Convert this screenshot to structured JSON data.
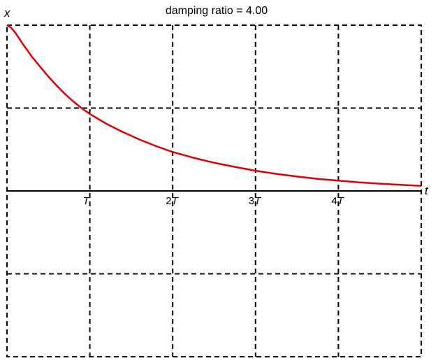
{
  "chart_data": {
    "type": "line",
    "title": "damping ratio = 4.00",
    "xlabel": "t",
    "ylabel": "x",
    "x_tick_labels": [
      {
        "value": 1,
        "coef": "",
        "sym": "T"
      },
      {
        "value": 2,
        "coef": "2",
        "sym": "T"
      },
      {
        "value": 3,
        "coef": "3",
        "sym": "T"
      },
      {
        "value": 4,
        "coef": "4",
        "sym": "T"
      }
    ],
    "x_unit": "T",
    "xlim": [
      0,
      5
    ],
    "ylim": [
      -1,
      1
    ],
    "grid": true,
    "grid_style": "dashed",
    "series": [
      {
        "color": "#dd0000",
        "x": [
          0,
          0.05,
          0.1,
          0.2,
          0.3,
          0.4,
          0.5,
          0.6,
          0.7,
          0.8,
          0.9,
          1.0,
          1.2,
          1.4,
          1.6,
          1.8,
          2.0,
          2.25,
          2.5,
          2.75,
          3.0,
          3.25,
          3.5,
          3.75,
          4.0,
          4.25,
          4.5,
          4.75,
          5.0
        ],
        "y": [
          1.0,
          0.985,
          0.955,
          0.88,
          0.81,
          0.75,
          0.69,
          0.635,
          0.585,
          0.54,
          0.5,
          0.465,
          0.405,
          0.355,
          0.31,
          0.27,
          0.235,
          0.2,
          0.17,
          0.145,
          0.122,
          0.103,
          0.087,
          0.073,
          0.062,
          0.052,
          0.044,
          0.037,
          0.031
        ]
      }
    ]
  }
}
